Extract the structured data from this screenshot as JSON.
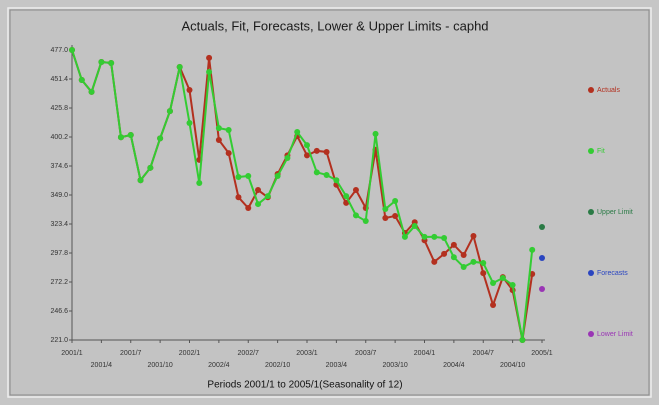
{
  "chart_data": {
    "type": "line",
    "title": "Actuals, Fit, Forecasts, Lower & Upper Limits - caphd",
    "x_label": "Periods 2001/1 to 2005/1(Seasonality of 12)",
    "categories": [
      "2001/1",
      null,
      null,
      "2001/4",
      null,
      null,
      "2001/7",
      null,
      null,
      "2001/10",
      null,
      null,
      "2002/1",
      null,
      null,
      "2002/4",
      null,
      null,
      "2002/7",
      null,
      null,
      "2002/10",
      null,
      null,
      "2003/1",
      null,
      null,
      "2003/4",
      null,
      null,
      "2003/7",
      null,
      null,
      "2003/10",
      null,
      null,
      "2004/1",
      null,
      null,
      "2004/4",
      null,
      null,
      "2004/7",
      null,
      null,
      "2004/10",
      null,
      null,
      "2005/1"
    ],
    "ylim": [
      221.0,
      477.0
    ],
    "yticks": [
      {
        "value": 221.0,
        "label": "221.0"
      },
      246.6,
      272.2,
      297.8,
      323.4,
      {
        "value": 349.0,
        "label": "349.0"
      },
      374.6,
      400.2,
      425.8,
      451.4,
      {
        "value": 477.0,
        "label": "477.0"
      }
    ],
    "grid": false,
    "legend": "right",
    "series": [
      {
        "name": "Actuals",
        "color": "#b3301f",
        "values": [
          477,
          450.5,
          440,
          466.4,
          465.5,
          400,
          402,
          362,
          373,
          399,
          423,
          462,
          441.7,
          380,
          470,
          397.6,
          386,
          347,
          337.5,
          353.4,
          347,
          367.5,
          384,
          401,
          384,
          388,
          387,
          358,
          342,
          353.4,
          337.5,
          389,
          328.7,
          330.5,
          315.5,
          325,
          309,
          290,
          297,
          305,
          296,
          312.8,
          280,
          251.9,
          276.5,
          265,
          221,
          279.3,
          null
        ]
      },
      {
        "name": "Fit",
        "color": "#33cc33",
        "values": [
          477,
          450.5,
          440,
          466.4,
          465.5,
          400,
          402,
          362,
          373,
          399,
          423,
          462,
          412.6,
          359.6,
          457.6,
          408,
          406.4,
          364.9,
          365.8,
          341,
          348,
          365.8,
          381.7,
          404.6,
          393,
          369,
          366.7,
          362,
          348,
          331,
          326,
          403,
          336.6,
          343.7,
          312,
          321.6,
          312,
          312,
          311,
          294,
          285.4,
          290,
          289,
          271.3,
          275.7,
          269.5,
          221,
          300.6,
          null
        ]
      },
      {
        "name": "Upper Limit",
        "color": "#2a7a45",
        "values": [
          null,
          null,
          null,
          null,
          null,
          null,
          null,
          null,
          null,
          null,
          null,
          null,
          null,
          null,
          null,
          null,
          null,
          null,
          null,
          null,
          null,
          null,
          null,
          null,
          null,
          null,
          null,
          null,
          null,
          null,
          null,
          null,
          null,
          null,
          null,
          null,
          null,
          null,
          null,
          null,
          null,
          null,
          null,
          null,
          null,
          null,
          null,
          null,
          320.8
        ]
      },
      {
        "name": "Forecasts",
        "color": "#2a45c0",
        "values": [
          null,
          null,
          null,
          null,
          null,
          null,
          null,
          null,
          null,
          null,
          null,
          null,
          null,
          null,
          null,
          null,
          null,
          null,
          null,
          null,
          null,
          null,
          null,
          null,
          null,
          null,
          null,
          null,
          null,
          null,
          null,
          null,
          null,
          null,
          null,
          null,
          null,
          null,
          null,
          null,
          null,
          null,
          null,
          null,
          null,
          null,
          null,
          null,
          293.4
        ]
      },
      {
        "name": "Lower Limit",
        "color": "#9a35b5",
        "values": [
          null,
          null,
          null,
          null,
          null,
          null,
          null,
          null,
          null,
          null,
          null,
          null,
          null,
          null,
          null,
          null,
          null,
          null,
          null,
          null,
          null,
          null,
          null,
          null,
          null,
          null,
          null,
          null,
          null,
          null,
          null,
          null,
          null,
          null,
          null,
          null,
          null,
          null,
          null,
          null,
          null,
          null,
          null,
          null,
          null,
          null,
          null,
          null,
          266
        ]
      }
    ]
  }
}
